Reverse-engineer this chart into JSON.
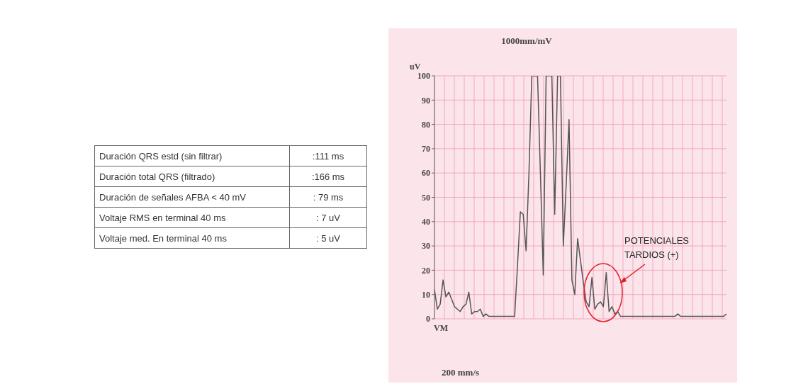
{
  "chart_data": [
    {
      "type": "other",
      "annotations": [
        "Duración QRS estd (sin filtrar)",
        ":111 ms",
        "Duración total QRS (filtrado)",
        ":166 ms",
        "Duración de señales AFBA < 40 mV",
        ": 79 ms",
        "Voltaje RMS en terminal 40 ms",
        ": 7 uV",
        "Voltaje med. En terminal 40 ms",
        ": 5 uV"
      ]
    },
    {
      "type": "line",
      "title": "1000mm/mV",
      "xlabel": "200 mm/s",
      "ylabel": "uV",
      "annotations": [
        "VM",
        "POTENCIALES TARDIOS (+)"
      ],
      "categories": [
        null,
        null,
        null,
        null,
        null,
        null,
        null,
        null,
        null,
        null,
        null,
        null,
        null,
        null,
        null,
        null,
        null,
        null,
        null,
        null,
        null,
        null,
        null,
        null,
        null,
        null,
        null,
        null,
        null,
        null,
        null,
        null,
        null,
        null,
        null,
        null,
        null,
        null,
        null,
        null,
        null,
        null,
        null,
        null,
        null,
        null,
        null,
        null,
        null,
        null,
        null,
        null,
        null,
        null,
        null,
        null,
        null,
        null,
        null,
        null,
        null,
        null,
        null,
        null,
        null,
        null,
        null,
        null,
        null,
        null,
        null,
        null,
        null,
        null,
        null,
        null,
        null,
        null,
        null,
        null,
        null,
        null,
        null,
        null,
        null,
        null,
        null,
        null,
        null,
        null,
        null,
        null,
        null,
        null,
        null,
        null,
        null,
        null,
        null,
        null,
        null,
        null,
        null
      ],
      "series": [
        {
          "color": "#555555",
          "values": [
            12,
            4,
            6,
            16,
            9,
            11,
            8,
            5,
            4,
            3,
            5,
            6,
            11,
            2,
            3,
            3,
            4,
            1,
            2,
            1,
            1,
            1,
            1,
            1,
            1,
            1,
            1,
            1,
            1,
            22,
            44,
            43,
            28,
            60,
            100,
            100,
            100,
            60,
            18,
            100,
            100,
            100,
            43,
            100,
            100,
            30,
            55,
            82,
            16,
            10,
            33,
            24,
            15,
            7,
            5,
            17,
            4,
            6,
            7,
            5,
            19,
            3,
            5,
            2,
            3,
            1,
            1,
            1,
            1,
            1,
            1,
            1,
            1,
            1,
            1,
            1,
            1,
            1,
            1,
            1,
            1,
            1,
            1,
            1,
            1,
            2,
            1,
            1,
            1,
            1,
            1,
            1,
            1,
            1,
            1,
            1,
            1,
            1,
            1,
            1,
            1,
            1,
            2
          ]
        }
      ],
      "ylim": [
        0,
        100
      ],
      "yticks": [
        0,
        10,
        20,
        30,
        40,
        50,
        60,
        70,
        80,
        90,
        100
      ],
      "grid": true,
      "tick_labels": "y",
      "marker": "none"
    }
  ]
}
